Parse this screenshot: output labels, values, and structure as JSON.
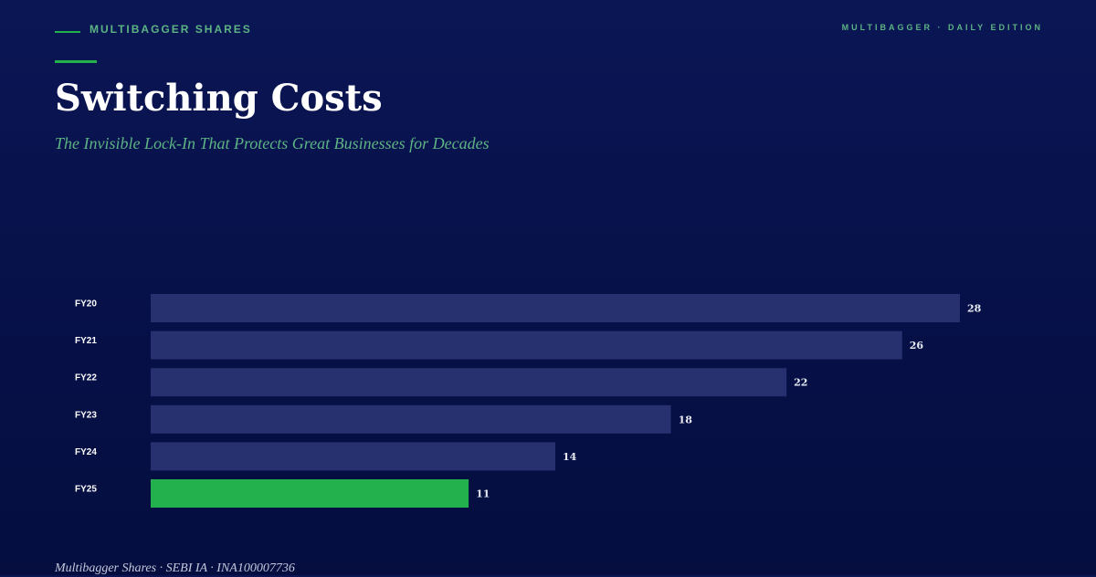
{
  "header": {
    "brand": "MULTIBAGGER SHARES",
    "edition": "MULTIBAGGER · DAILY EDITION"
  },
  "title": "Switching Costs",
  "subtitle": "The Invisible Lock-In That Protects Great Businesses for Decades",
  "footer": "Multibagger Shares · SEBI IA · INA100007736",
  "colors": {
    "accent": "#22b14c",
    "accent_text": "#5cb383",
    "bar": "#28316f",
    "highlight_bar": "#22b14c",
    "category_label": "#ffffff",
    "value_label": "#e8eaf2"
  },
  "chart_data": {
    "type": "bar",
    "orientation": "horizontal",
    "title": "",
    "xlabel": "",
    "ylabel": "",
    "categories": [
      "FY20",
      "FY21",
      "FY22",
      "FY23",
      "FY24",
      "FY25"
    ],
    "values": [
      28,
      26,
      22,
      18,
      14,
      11
    ],
    "highlight_category": "FY25",
    "xlim": [
      0,
      28
    ],
    "grid": false,
    "legend": "none"
  }
}
